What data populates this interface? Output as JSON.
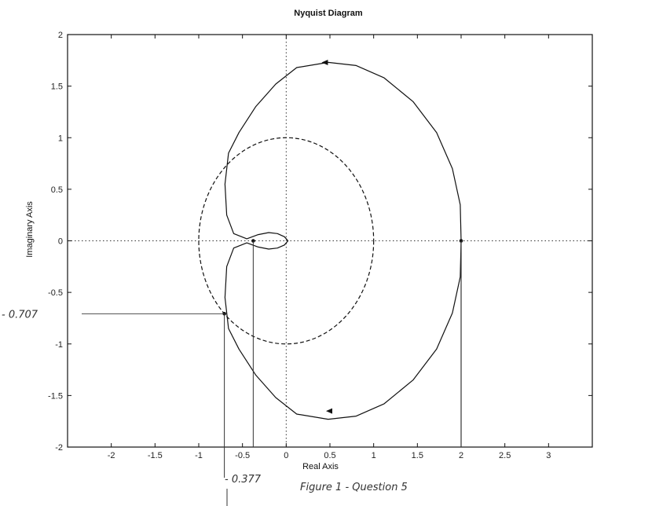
{
  "chart_data": {
    "type": "line",
    "title": "Nyquist Diagram",
    "xlabel": "Real Axis",
    "ylabel": "Imaginary Axis",
    "xlim": [
      -2.5,
      3.5
    ],
    "ylim": [
      -2,
      2
    ],
    "xticks": [
      -2,
      -1.5,
      -1,
      -0.5,
      0,
      0.5,
      1,
      1.5,
      2,
      2.5,
      3
    ],
    "yticks": [
      -2,
      -1.5,
      -1,
      -0.5,
      0,
      0.5,
      1,
      1.5,
      2
    ],
    "xtick_labels": [
      "-2",
      "-1.5",
      "-1",
      "-0.5",
      "0",
      "0.5",
      "1",
      "1.5",
      "2",
      "2.5",
      "3"
    ],
    "ytick_labels": [
      "-2",
      "-1.5",
      "-1",
      "-0.5",
      "0",
      "0.5",
      "1",
      "1.5",
      "2"
    ],
    "grid": false,
    "series": [
      {
        "style": "solid",
        "x": [
          2.0,
          1.99,
          1.9,
          1.72,
          1.45,
          1.12,
          0.8,
          0.48,
          0.12,
          -0.12,
          -0.35,
          -0.54,
          -0.66,
          -0.7,
          -0.68,
          -0.6,
          -0.45,
          -0.32,
          -0.2,
          -0.1,
          -0.02,
          0.02,
          -0.02,
          -0.1,
          -0.2,
          -0.32,
          -0.45,
          -0.6,
          -0.68,
          -0.7,
          -0.66,
          -0.54,
          -0.35,
          -0.12,
          0.12,
          0.48,
          0.8,
          1.12,
          1.45,
          1.72,
          1.9,
          1.99,
          2.0
        ],
        "y": [
          0.0,
          0.35,
          0.7,
          1.05,
          1.35,
          1.58,
          1.7,
          1.73,
          1.68,
          1.52,
          1.3,
          1.05,
          0.85,
          0.55,
          0.25,
          0.07,
          0.02,
          0.06,
          0.08,
          0.07,
          0.04,
          0.0,
          -0.04,
          -0.07,
          -0.08,
          -0.06,
          -0.02,
          -0.07,
          -0.25,
          -0.55,
          -0.85,
          -1.05,
          -1.3,
          -1.52,
          -1.68,
          -1.73,
          -1.7,
          -1.58,
          -1.35,
          -1.05,
          -0.7,
          -0.35,
          0.0
        ]
      },
      {
        "style": "dashed",
        "shape": "unit-circle",
        "center": [
          0,
          0
        ],
        "radius": 1
      }
    ],
    "arrows": [
      {
        "x": 0.45,
        "y": 1.73,
        "direction": "left"
      },
      {
        "x": 0.5,
        "y": -1.65,
        "direction": "left"
      }
    ],
    "marked_points": [
      {
        "x": -0.707,
        "y": -0.707
      },
      {
        "x": -0.377,
        "y": 0.0
      },
      {
        "x": 2.0,
        "y": 0.0
      }
    ],
    "annotations": [
      {
        "text": "- 0.707",
        "x": -0.707,
        "y": -0.707
      },
      {
        "text": "- 0.377",
        "x": -0.377,
        "y": -2
      },
      {
        "text": "Figure 1 - Question 5"
      }
    ]
  }
}
